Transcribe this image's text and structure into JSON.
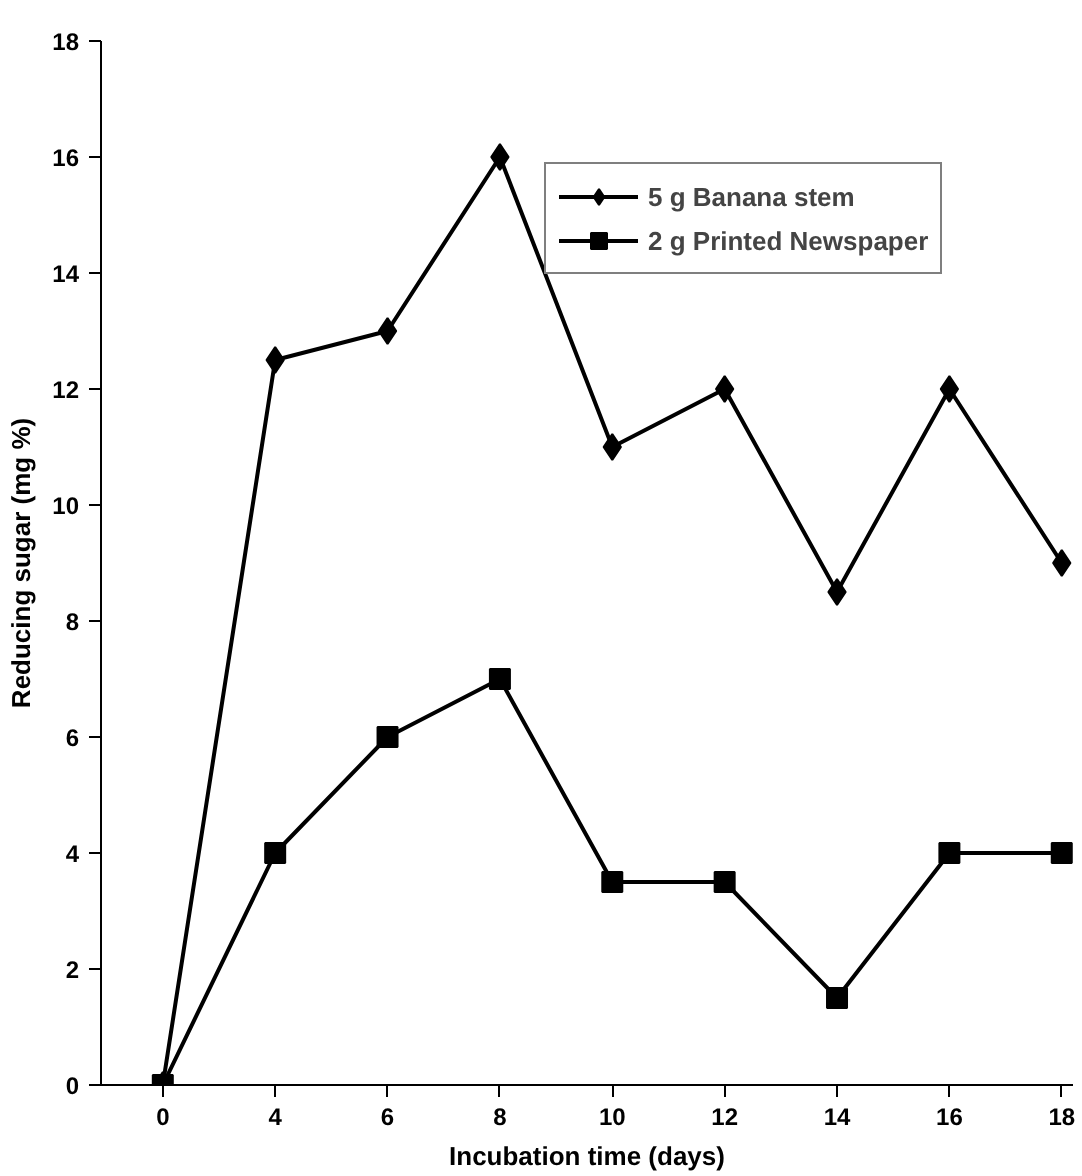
{
  "chart_data": {
    "type": "line",
    "xlabel": "Incubation time (days)",
    "ylabel": "Reducing sugar (mg %)",
    "categories": [
      "0",
      "4",
      "6",
      "8",
      "10",
      "12",
      "14",
      "16",
      "18"
    ],
    "series": [
      {
        "name": "5 g Banana stem",
        "color": "#000000",
        "marker": "diamond",
        "values": [
          0,
          12.5,
          13,
          16,
          11,
          12,
          8.5,
          12,
          9
        ]
      },
      {
        "name": "2 g Printed Newspaper",
        "color": "#000000",
        "marker": "square",
        "values": [
          0,
          4,
          6,
          7,
          3.5,
          3.5,
          1.5,
          4,
          4
        ]
      }
    ],
    "ylim": [
      0,
      18
    ],
    "yticks": [
      0,
      2,
      4,
      6,
      8,
      10,
      12,
      14,
      16,
      18
    ],
    "grid": false,
    "legend": "top",
    "line_style": "solid"
  }
}
